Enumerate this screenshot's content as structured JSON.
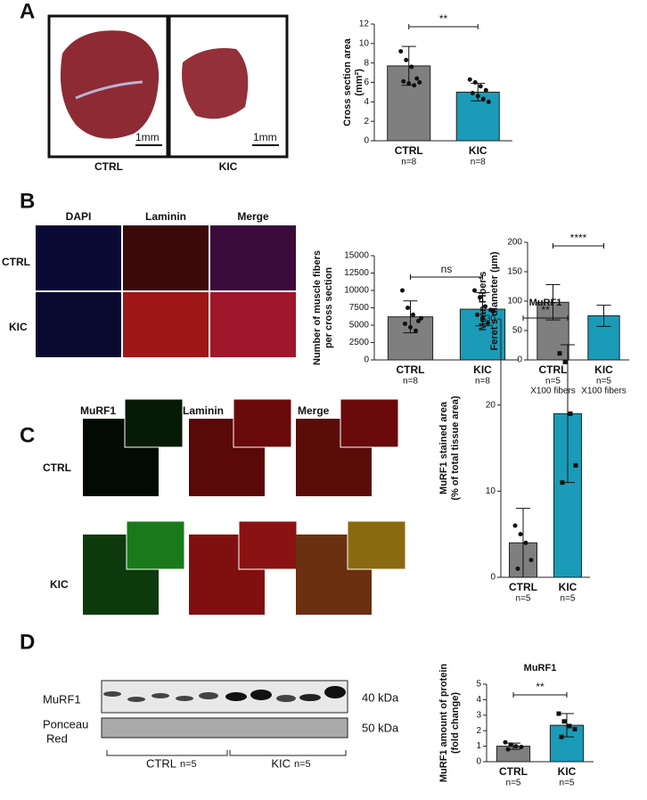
{
  "panels": {
    "letters": [
      "A",
      "B",
      "C",
      "D"
    ],
    "a": {
      "scale": [
        "1mm",
        "1mm"
      ],
      "groups": [
        "CTRL",
        "KIC"
      ]
    },
    "b": {
      "stains": [
        "DAPI",
        "Laminin",
        "Merge"
      ],
      "groups": [
        "CTRL",
        "KIC"
      ]
    },
    "c": {
      "stains": [
        "MuRF1",
        "Laminin",
        "Merge"
      ],
      "groups": [
        "CTRL",
        "KIC"
      ]
    },
    "d": {
      "rows": [
        "MuRF1",
        "Ponceau",
        "Red"
      ],
      "sizes": [
        "40 kDa",
        "50 kDa"
      ],
      "groups": [
        "CTRL",
        "KIC"
      ],
      "n": [
        "n=5",
        "n=5"
      ]
    }
  },
  "chart_data": [
    {
      "type": "bar",
      "ylabel": [
        "Cross section area",
        "(mm²)"
      ],
      "categories": [
        "CTRL",
        "KIC"
      ],
      "sublabels": [
        [
          "n=8"
        ],
        [
          "n=8"
        ]
      ],
      "values": [
        7.7,
        5.0
      ],
      "errors": [
        2.0,
        0.9
      ],
      "colors": [
        "#7f7f7f",
        "#1a9bb8"
      ],
      "points": [
        [
          9.2,
          8.3,
          7.6,
          6.4,
          6.1,
          5.9,
          5.7,
          6.0
        ],
        [
          6.3,
          6.0,
          5.6,
          5.2,
          4.9,
          4.6,
          4.3,
          4.0
        ]
      ],
      "significance": "**",
      "ylim": [
        0,
        12
      ],
      "yticks": [
        0,
        2,
        4,
        6,
        8,
        10,
        12
      ]
    },
    {
      "type": "bar",
      "ylabel": [
        "Number of muscle fibers",
        "per cross section"
      ],
      "categories": [
        "CTRL",
        "KIC"
      ],
      "sublabels": [
        [
          "n=8"
        ],
        [
          "n=8"
        ]
      ],
      "values": [
        6200,
        7300
      ],
      "errors": [
        2300,
        2400
      ],
      "colors": [
        "#7f7f7f",
        "#1a9bb8"
      ],
      "points": [
        [
          10000,
          7500,
          6500,
          5600,
          5200,
          4700,
          4200,
          6000
        ],
        [
          10000,
          9000,
          7700,
          7200,
          6500,
          6000,
          5300,
          7000
        ]
      ],
      "significance": "ns",
      "ylim": [
        0,
        15000
      ],
      "yticks": [
        0,
        2500,
        5000,
        7500,
        10000,
        12500,
        15000
      ]
    },
    {
      "type": "bar",
      "ylabel": [
        "Mean Fiber's",
        "Feret's diameter (µm)"
      ],
      "categories": [
        "CTRL",
        "KIC"
      ],
      "sublabels": [
        [
          "n=5",
          "X100 fibers"
        ],
        [
          "n=5",
          "X100 fibers"
        ]
      ],
      "values": [
        98,
        75
      ],
      "errors": [
        30,
        18
      ],
      "colors": [
        "#7f7f7f",
        "#1a9bb8"
      ],
      "significance": "****",
      "ylim": [
        0,
        200
      ],
      "yticks": [
        0,
        50,
        100,
        150,
        200
      ]
    },
    {
      "type": "bar",
      "title": "MuRF1",
      "ylabel": [
        "MuRF1 stained area",
        "(% of total tissue area)"
      ],
      "categories": [
        "CTRL",
        "KIC"
      ],
      "sublabels": [
        [
          "n=5"
        ],
        [
          "n=5"
        ]
      ],
      "values": [
        4,
        19
      ],
      "errors": [
        4,
        8
      ],
      "colors": [
        "#7f7f7f",
        "#1a9bb8"
      ],
      "points": [
        [
          6,
          5,
          4,
          2,
          1
        ],
        [
          26,
          25,
          19,
          13,
          11
        ]
      ],
      "significance": "**",
      "ylim": [
        0,
        30
      ],
      "yticks": [
        0,
        10,
        20,
        30
      ]
    },
    {
      "type": "bar",
      "title": "MuRF1",
      "ylabel": [
        "MuRF1 amount of protein",
        "(fold change)"
      ],
      "categories": [
        "CTRL",
        "KIC"
      ],
      "sublabels": [
        [
          "n=5"
        ],
        [
          "n=5"
        ]
      ],
      "values": [
        1.0,
        2.35
      ],
      "errors": [
        0.2,
        0.75
      ],
      "colors": [
        "#7f7f7f",
        "#1a9bb8"
      ],
      "points": [
        [
          1.25,
          1.1,
          1.0,
          0.95,
          0.8
        ],
        [
          3.1,
          2.6,
          2.3,
          2.1,
          1.6
        ]
      ],
      "significance": "**",
      "ylim": [
        0,
        5
      ],
      "yticks": [
        0,
        1,
        2,
        3,
        4,
        5
      ]
    }
  ]
}
